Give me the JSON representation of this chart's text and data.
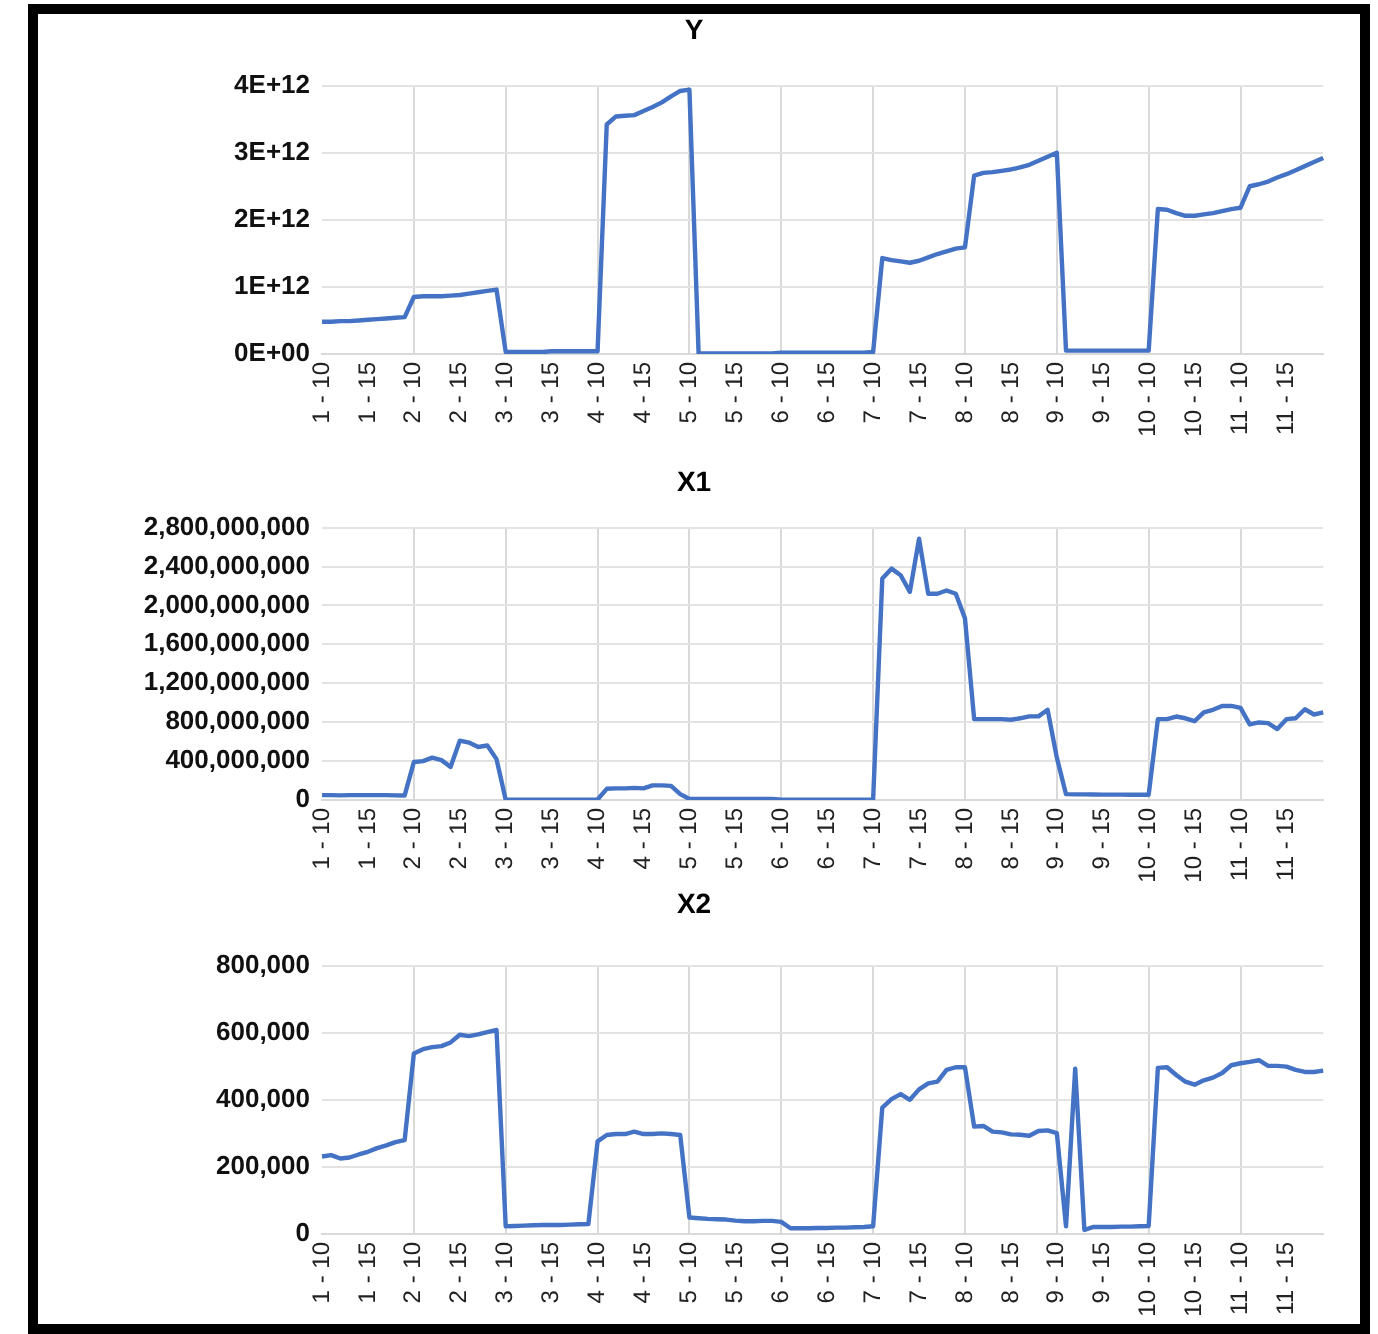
{
  "chart_data": [
    {
      "type": "line",
      "title": "Y",
      "grid": true,
      "marker": "none",
      "categories": [
        "1 - 10",
        null,
        null,
        null,
        null,
        "1 - 15",
        null,
        null,
        null,
        null,
        "2 - 10",
        null,
        null,
        null,
        null,
        "2 - 15",
        null,
        null,
        null,
        null,
        "3 - 10",
        null,
        null,
        null,
        null,
        "3 - 15",
        null,
        null,
        null,
        null,
        "4 - 10",
        null,
        null,
        null,
        null,
        "4 - 15",
        null,
        null,
        null,
        null,
        "5 - 10",
        null,
        null,
        null,
        null,
        "5 - 15",
        null,
        null,
        null,
        null,
        "6 - 10",
        null,
        null,
        null,
        null,
        "6 - 15",
        null,
        null,
        null,
        null,
        "7 - 10",
        null,
        null,
        null,
        null,
        "7 - 15",
        null,
        null,
        null,
        null,
        "8 - 10",
        null,
        null,
        null,
        null,
        "8 - 15",
        null,
        null,
        null,
        null,
        "9 - 10",
        null,
        null,
        null,
        null,
        "9 - 15",
        null,
        null,
        null,
        null,
        "10 - 10",
        null,
        null,
        null,
        null,
        "10 - 15",
        null,
        null,
        null,
        null,
        "11 - 10",
        null,
        null,
        null,
        null,
        "11 - 15",
        null,
        null,
        null,
        null
      ],
      "series": [
        {
          "color": "#4472c4",
          "values": [
            480000000000.0,
            480000000000.0,
            490000000000.0,
            490000000000.0,
            500000000000.0,
            510000000000.0,
            520000000000.0,
            530000000000.0,
            540000000000.0,
            550000000000.0,
            850000000000.0,
            860000000000.0,
            860000000000.0,
            860000000000.0,
            870000000000.0,
            880000000000.0,
            900000000000.0,
            920000000000.0,
            940000000000.0,
            960000000000.0,
            30000000000.0,
            30000000000.0,
            30000000000.0,
            30000000000.0,
            30000000000.0,
            40000000000.0,
            40000000000.0,
            40000000000.0,
            40000000000.0,
            40000000000.0,
            40000000000.0,
            3420000000000.0,
            3540000000000.0,
            3550000000000.0,
            3560000000000.0,
            3620000000000.0,
            3680000000000.0,
            3750000000000.0,
            3840000000000.0,
            3920000000000.0,
            3940000000000.0,
            10000000000.0,
            10000000000.0,
            10000000000.0,
            10000000000.0,
            10000000000.0,
            10000000000.0,
            10000000000.0,
            10000000000.0,
            10000000000.0,
            20000000000.0,
            20000000000.0,
            20000000000.0,
            20000000000.0,
            20000000000.0,
            20000000000.0,
            20000000000.0,
            20000000000.0,
            20000000000.0,
            20000000000.0,
            30000000000.0,
            1430000000000.0,
            1400000000000.0,
            1380000000000.0,
            1360000000000.0,
            1390000000000.0,
            1440000000000.0,
            1490000000000.0,
            1530000000000.0,
            1570000000000.0,
            1590000000000.0,
            2660000000000.0,
            2700000000000.0,
            2710000000000.0,
            2730000000000.0,
            2750000000000.0,
            2780000000000.0,
            2820000000000.0,
            2880000000000.0,
            2940000000000.0,
            3000000000000.0,
            50000000000.0,
            50000000000.0,
            50000000000.0,
            50000000000.0,
            50000000000.0,
            50000000000.0,
            50000000000.0,
            50000000000.0,
            50000000000.0,
            50000000000.0,
            2160000000000.0,
            2150000000000.0,
            2100000000000.0,
            2060000000000.0,
            2060000000000.0,
            2080000000000.0,
            2100000000000.0,
            2130000000000.0,
            2160000000000.0,
            2180000000000.0,
            2500000000000.0,
            2530000000000.0,
            2570000000000.0,
            2630000000000.0,
            2680000000000.0,
            2740000000000.0,
            2800000000000.0,
            2860000000000.0,
            2920000000000.0
          ]
        }
      ],
      "ylim": [
        0,
        4000000000000.0
      ],
      "yticks": [
        {
          "value": 0,
          "label": "0E+00"
        },
        {
          "value": 1000000000000.0,
          "label": "1E+12"
        },
        {
          "value": 2000000000000.0,
          "label": "2E+12"
        },
        {
          "value": 3000000000000.0,
          "label": "3E+12"
        },
        {
          "value": 4000000000000.0,
          "label": "4E+12"
        }
      ]
    },
    {
      "type": "line",
      "title": "X1",
      "grid": true,
      "marker": "none",
      "categories": [
        "1 - 10",
        null,
        null,
        null,
        null,
        "1 - 15",
        null,
        null,
        null,
        null,
        "2 - 10",
        null,
        null,
        null,
        null,
        "2 - 15",
        null,
        null,
        null,
        null,
        "3 - 10",
        null,
        null,
        null,
        null,
        "3 - 15",
        null,
        null,
        null,
        null,
        "4 - 10",
        null,
        null,
        null,
        null,
        "4 - 15",
        null,
        null,
        null,
        null,
        "5 - 10",
        null,
        null,
        null,
        null,
        "5 - 15",
        null,
        null,
        null,
        null,
        "6 - 10",
        null,
        null,
        null,
        null,
        "6 - 15",
        null,
        null,
        null,
        null,
        "7 - 10",
        null,
        null,
        null,
        null,
        "7 - 15",
        null,
        null,
        null,
        null,
        "8 - 10",
        null,
        null,
        null,
        null,
        "8 - 15",
        null,
        null,
        null,
        null,
        "9 - 10",
        null,
        null,
        null,
        null,
        "9 - 15",
        null,
        null,
        null,
        null,
        "10 - 10",
        null,
        null,
        null,
        null,
        "10 - 15",
        null,
        null,
        null,
        null,
        "11 - 10",
        null,
        null,
        null,
        null,
        "11 - 15",
        null,
        null,
        null,
        null
      ],
      "series": [
        {
          "color": "#4472c4",
          "values": [
            50000000.0,
            50000000.0,
            48000000.0,
            50000000.0,
            50000000.0,
            50000000.0,
            50000000.0,
            50000000.0,
            48000000.0,
            47000000.0,
            390000000.0,
            400000000.0,
            435000000.0,
            410000000.0,
            340000000.0,
            610000000.0,
            590000000.0,
            545000000.0,
            560000000.0,
            420000000.0,
            2000000.0,
            2000000.0,
            2000000.0,
            2000000.0,
            2000000.0,
            2000000.0,
            2000000.0,
            2000000.0,
            2000000.0,
            2000000.0,
            5000000.0,
            115000000.0,
            120000000.0,
            120000000.0,
            125000000.0,
            120000000.0,
            150000000.0,
            150000000.0,
            145000000.0,
            60000000.0,
            10000000.0,
            10000000.0,
            10000000.0,
            10000000.0,
            10000000.0,
            10000000.0,
            10000000.0,
            10000000.0,
            10000000.0,
            10000000.0,
            2000000.0,
            2000000.0,
            2000000.0,
            2000000.0,
            2000000.0,
            2000000.0,
            2000000.0,
            2000000.0,
            2000000.0,
            2000000.0,
            2000000.0,
            2276000000.0,
            2378000000.0,
            2310000000.0,
            2140000000.0,
            2685000000.0,
            2120000000.0,
            2120000000.0,
            2153000000.0,
            2120000000.0,
            1867000000.0,
            831000000.0,
            831000000.0,
            831000000.0,
            831000000.0,
            825000000.0,
            840000000.0,
            860000000.0,
            860000000.0,
            927000000.0,
            436000000.0,
            60000000.0,
            58000000.0,
            58000000.0,
            56000000.0,
            55000000.0,
            55000000.0,
            55000000.0,
            54000000.0,
            54000000.0,
            54000000.0,
            831000000.0,
            831000000.0,
            858000000.0,
            840000000.0,
            810000000.0,
            900000000.0,
            927000000.0,
            967000000.0,
            967000000.0,
            947000000.0,
            777000000.0,
            797000000.0,
            790000000.0,
            729000000.0,
            831000000.0,
            840000000.0,
            933000000.0,
            879000000.0,
            900000000.0
          ]
        }
      ],
      "ylim": [
        0,
        2800000000
      ],
      "yticks": [
        {
          "value": 0,
          "label": "0"
        },
        {
          "value": 400000000,
          "label": "400,000,000"
        },
        {
          "value": 800000000,
          "label": "800,000,000"
        },
        {
          "value": 1200000000,
          "label": "1,200,000,000"
        },
        {
          "value": 1600000000,
          "label": "1,600,000,000"
        },
        {
          "value": 2000000000,
          "label": "2,000,000,000"
        },
        {
          "value": 2400000000,
          "label": "2,400,000,000"
        },
        {
          "value": 2800000000,
          "label": "2,800,000,000"
        }
      ]
    },
    {
      "type": "line",
      "title": "X2",
      "grid": true,
      "marker": "none",
      "categories": [
        "1 - 10",
        null,
        null,
        null,
        null,
        "1 - 15",
        null,
        null,
        null,
        null,
        "2 - 10",
        null,
        null,
        null,
        null,
        "2 - 15",
        null,
        null,
        null,
        null,
        "3 - 10",
        null,
        null,
        null,
        null,
        "3 - 15",
        null,
        null,
        null,
        null,
        "4 - 10",
        null,
        null,
        null,
        null,
        "4 - 15",
        null,
        null,
        null,
        null,
        "5 - 10",
        null,
        null,
        null,
        null,
        "5 - 15",
        null,
        null,
        null,
        null,
        "6 - 10",
        null,
        null,
        null,
        null,
        "6 - 15",
        null,
        null,
        null,
        null,
        "7 - 10",
        null,
        null,
        null,
        null,
        "7 - 15",
        null,
        null,
        null,
        null,
        "8 - 10",
        null,
        null,
        null,
        null,
        "8 - 15",
        null,
        null,
        null,
        null,
        "9 - 10",
        null,
        null,
        null,
        null,
        "9 - 15",
        null,
        null,
        null,
        null,
        "10 - 10",
        null,
        null,
        null,
        null,
        "10 - 15",
        null,
        null,
        null,
        null,
        "11 - 10",
        null,
        null,
        null,
        null,
        "11 - 15",
        null,
        null,
        null,
        null
      ],
      "series": [
        {
          "color": "#4472c4",
          "values": [
            231000,
            235000,
            225000,
            228000,
            237000,
            245000,
            256000,
            264000,
            274000,
            280000,
            538000,
            551000,
            557000,
            560000,
            571000,
            594000,
            590000,
            595000,
            602000,
            608000,
            23000,
            24000,
            25000,
            26000,
            27000,
            27000,
            27000,
            28000,
            29000,
            30000,
            276000,
            295000,
            298000,
            298000,
            305000,
            298000,
            298000,
            300000,
            298000,
            295000,
            49000,
            47000,
            45000,
            44000,
            43000,
            40000,
            38000,
            38000,
            39000,
            39000,
            36000,
            17000,
            17000,
            17000,
            18000,
            18000,
            19000,
            19000,
            20000,
            21000,
            23000,
            377000,
            402000,
            417000,
            400000,
            431000,
            449000,
            454000,
            489000,
            497000,
            497000,
            320000,
            322000,
            305000,
            303000,
            297000,
            296000,
            293000,
            307000,
            309000,
            301000,
            23000,
            493000,
            12000,
            21000,
            21000,
            21000,
            22000,
            22000,
            23000,
            24000,
            495000,
            497000,
            474000,
            454000,
            445000,
            458000,
            466000,
            480000,
            503000,
            509000,
            513000,
            518000,
            501000,
            501000,
            499000,
            489000,
            483000,
            483000,
            487000
          ]
        }
      ],
      "ylim": [
        0,
        800000
      ],
      "yticks": [
        {
          "value": 0,
          "label": "0"
        },
        {
          "value": 200000,
          "label": "200,000"
        },
        {
          "value": 400000,
          "label": "400,000"
        },
        {
          "value": 600000,
          "label": "600,000"
        },
        {
          "value": 800000,
          "label": "800,000"
        }
      ]
    }
  ]
}
